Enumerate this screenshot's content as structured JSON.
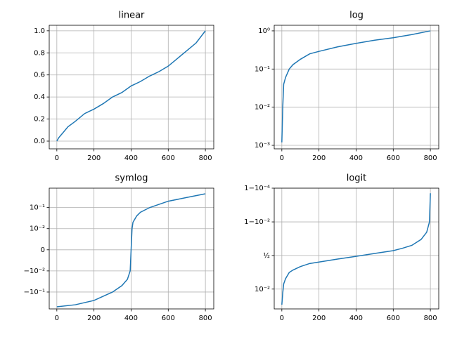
{
  "chart_data": [
    {
      "type": "line",
      "title": "linear",
      "yscale": "linear",
      "grid": true,
      "x": [
        0,
        10,
        20,
        40,
        60,
        100,
        150,
        200,
        250,
        300,
        350,
        400,
        450,
        500,
        550,
        600,
        650,
        700,
        750,
        800
      ],
      "series": [
        {
          "color": "#1f77b4",
          "values": [
            0.0,
            0.03,
            0.05,
            0.09,
            0.13,
            0.18,
            0.25,
            0.29,
            0.34,
            0.4,
            0.44,
            0.5,
            0.54,
            0.59,
            0.63,
            0.68,
            0.75,
            0.82,
            0.89,
            1.0
          ]
        }
      ],
      "xlim": [
        -41,
        845
      ],
      "xticks": [
        0,
        200,
        400,
        600,
        800
      ],
      "ylim": [
        -0.07,
        1.05
      ],
      "yticks": [
        {
          "value": 0,
          "label": "0.0"
        },
        {
          "value": 0.2,
          "label": "0.2"
        },
        {
          "value": 0.4,
          "label": "0.4"
        },
        {
          "value": 0.6,
          "label": "0.6"
        },
        {
          "value": 0.8,
          "label": "0.8"
        },
        {
          "value": 1,
          "label": "1.0"
        }
      ]
    },
    {
      "type": "line",
      "title": "log",
      "yscale": "log",
      "grid": true,
      "x": [
        0,
        5,
        10,
        20,
        40,
        60,
        100,
        150,
        200,
        300,
        400,
        500,
        600,
        700,
        800
      ],
      "series": [
        {
          "color": "#1f77b4",
          "values": [
            0.0012,
            0.01,
            0.04,
            0.06,
            0.1,
            0.13,
            0.18,
            0.25,
            0.29,
            0.38,
            0.47,
            0.57,
            0.66,
            0.8,
            1.0
          ]
        }
      ],
      "xlim": [
        -41,
        845
      ],
      "xticks": [
        0,
        200,
        400,
        600,
        800
      ],
      "ylim": [
        0.00081,
        1.4
      ],
      "yticks": [
        {
          "value": 0.001,
          "label": "10⁻³"
        },
        {
          "value": 0.01,
          "label": "10⁻²"
        },
        {
          "value": 0.1,
          "label": "10⁻¹"
        },
        {
          "value": 1,
          "label": "10⁰"
        }
      ]
    },
    {
      "type": "line",
      "title": "symlog",
      "yscale": "symlog",
      "linthresh": 0.01,
      "grid": true,
      "x": [
        0,
        100,
        200,
        300,
        350,
        380,
        395,
        400,
        405,
        410,
        430,
        450,
        500,
        600,
        700,
        800
      ],
      "series": [
        {
          "color": "#1f77b4",
          "values": [
            -0.5,
            -0.4,
            -0.25,
            -0.1,
            -0.05,
            -0.025,
            -0.01,
            0,
            0.01,
            0.02,
            0.04,
            0.06,
            0.1,
            0.2,
            0.3,
            0.45
          ]
        }
      ],
      "xlim": [
        -41,
        845
      ],
      "xticks": [
        0,
        200,
        400,
        600,
        800
      ],
      "ylim": [
        -0.63,
        0.83
      ],
      "yticks": [
        {
          "value": -0.1,
          "label": "−10⁻¹"
        },
        {
          "value": -0.01,
          "label": "−10⁻²"
        },
        0,
        {
          "value": 0.01,
          "label": "10⁻²"
        },
        {
          "value": 0.1,
          "label": "10⁻¹"
        }
      ]
    },
    {
      "type": "line",
      "title": "logit",
      "yscale": "logit",
      "grid": true,
      "x": [
        0,
        5,
        10,
        20,
        40,
        60,
        100,
        150,
        200,
        300,
        400,
        500,
        600,
        650,
        700,
        750,
        780,
        795,
        800
      ],
      "series": [
        {
          "color": "#1f77b4",
          "values": [
            0.0012,
            0.006,
            0.02,
            0.04,
            0.09,
            0.12,
            0.18,
            0.25,
            0.29,
            0.38,
            0.47,
            0.57,
            0.66,
            0.73,
            0.8,
            0.9,
            0.96,
            0.99,
            0.9998
          ]
        }
      ],
      "xlim": [
        -41,
        845
      ],
      "xticks": [
        0,
        200,
        400,
        600,
        800
      ],
      "ylim": [
        0.00067,
        0.9999
      ],
      "yticks": [
        {
          "value": 0.01,
          "label": "10⁻²"
        },
        {
          "value": 0.5,
          "label": "½"
        },
        {
          "value": 0.99,
          "label": "1−10⁻²"
        },
        {
          "value": 0.9999,
          "label": "1−10⁻⁴"
        }
      ]
    }
  ]
}
